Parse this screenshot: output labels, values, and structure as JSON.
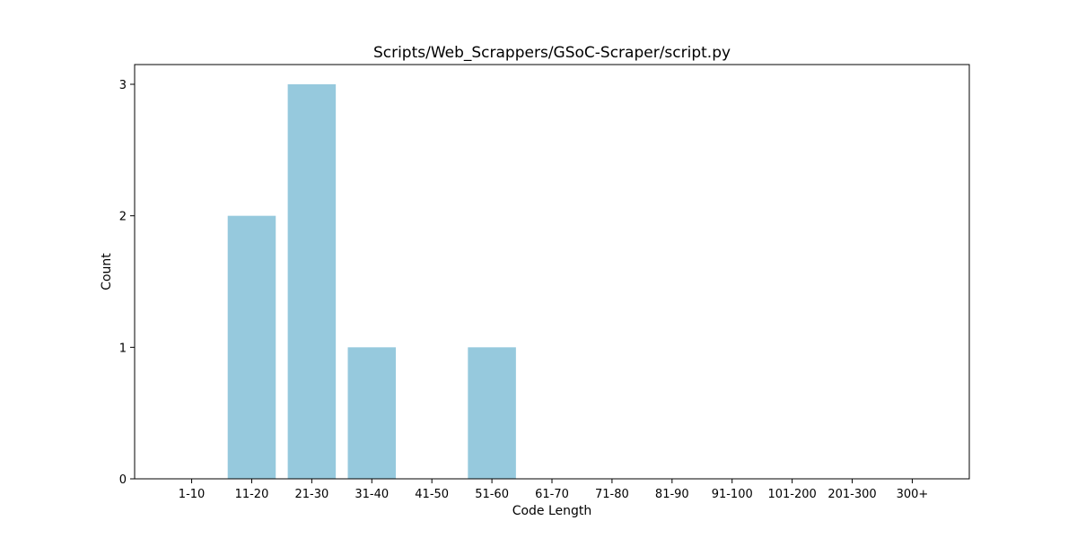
{
  "chart_data": {
    "type": "bar",
    "title": "Scripts/Web_Scrappers/GSoC-Scraper/script.py",
    "xlabel": "Code Length",
    "ylabel": "Count",
    "categories": [
      "1-10",
      "11-20",
      "21-30",
      "31-40",
      "41-50",
      "51-60",
      "61-70",
      "71-80",
      "81-90",
      "91-100",
      "101-200",
      "201-300",
      "300+"
    ],
    "values": [
      0,
      2,
      3,
      1,
      0,
      1,
      0,
      0,
      0,
      0,
      0,
      0,
      0
    ],
    "yticks": [
      "0",
      "1",
      "2",
      "3"
    ],
    "ylim": [
      0,
      3.15
    ],
    "bar_color": "#96c9dd",
    "grid": false
  }
}
